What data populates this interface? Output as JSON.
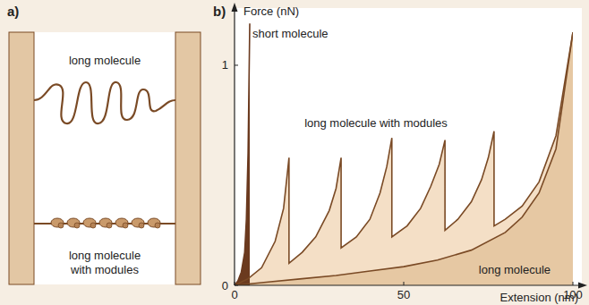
{
  "panels": {
    "a": {
      "label": "a)",
      "top_label": "long molecule",
      "bottom_label": [
        "long molecule",
        "with modules"
      ]
    },
    "b": {
      "label": "b)"
    }
  },
  "chart_data": {
    "type": "line",
    "x_label": "Extension (nm)",
    "y_label": "Force (nN)",
    "xlim": [
      0,
      100
    ],
    "ylim": [
      0,
      1.26
    ],
    "xticks": [
      0,
      50,
      100
    ],
    "yticks": [
      0,
      1
    ],
    "grid": false,
    "series": [
      {
        "name": "long molecule with modules",
        "type": "area",
        "color": "#f4dfc6",
        "x": [
          0,
          4,
          8,
          12,
          14.5,
          16.1,
          16.1,
          20,
          24,
          28,
          30,
          31.5,
          31.5,
          36,
          40,
          43,
          45,
          46.5,
          46.5,
          51,
          55,
          58,
          60.5,
          62.2,
          62.2,
          66,
          70,
          73,
          75,
          76.7,
          76.7,
          80,
          85,
          90,
          95,
          100
        ],
        "values": [
          0,
          0.03,
          0.08,
          0.2,
          0.35,
          0.58,
          0.1,
          0.15,
          0.22,
          0.34,
          0.44,
          0.58,
          0.17,
          0.22,
          0.3,
          0.42,
          0.54,
          0.67,
          0.22,
          0.27,
          0.35,
          0.45,
          0.55,
          0.66,
          0.25,
          0.3,
          0.38,
          0.48,
          0.58,
          0.7,
          0.27,
          0.3,
          0.36,
          0.47,
          0.68,
          1.15
        ]
      },
      {
        "name": "long molecule",
        "type": "area",
        "color": "#e6c8a3",
        "x": [
          0,
          10,
          20,
          30,
          40,
          50,
          60,
          70,
          80,
          85,
          90,
          95,
          100
        ],
        "values": [
          0,
          0.015,
          0.03,
          0.045,
          0.065,
          0.085,
          0.115,
          0.16,
          0.24,
          0.31,
          0.42,
          0.62,
          1.15
        ]
      },
      {
        "name": "short molecule",
        "type": "area",
        "color": "#6b3a1f",
        "x": [
          0,
          1,
          2,
          3,
          3.5,
          4,
          4.5
        ],
        "values": [
          0,
          0.02,
          0.06,
          0.15,
          0.3,
          0.6,
          1.19
        ]
      }
    ]
  }
}
